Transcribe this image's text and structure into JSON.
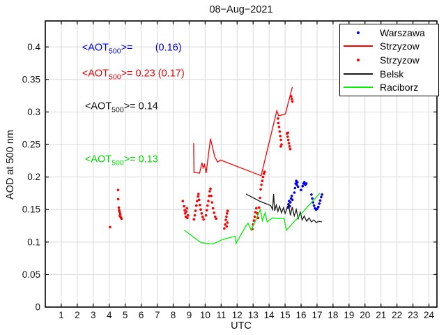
{
  "chart_data": {
    "type": "scatter",
    "title": "08−Aug−2021",
    "xlabel": "UTC",
    "ylabel": "AOD at 500 nm",
    "xlim": [
      0,
      24.5
    ],
    "ylim": [
      0,
      0.44
    ],
    "xticks": [
      1,
      2,
      3,
      4,
      5,
      6,
      7,
      8,
      9,
      10,
      11,
      12,
      13,
      14,
      15,
      16,
      17,
      18,
      19,
      20,
      21,
      22,
      23,
      24
    ],
    "ytick_values": [
      0,
      0.05,
      0.1,
      0.15,
      0.2,
      0.25,
      0.3,
      0.35,
      0.4
    ],
    "ytick_labels": [
      "0",
      "0.05",
      "0.1",
      "0.15",
      "0.2",
      "0.25",
      "0.3",
      "0.35",
      "0.4"
    ],
    "grid": true,
    "grid_color": "#d8d8d8",
    "axis_color": "#000000",
    "aot500_means": {
      "warszawa_bracket": 0.16,
      "strzyzow": 0.23,
      "strzyzow_bracket": 0.17,
      "belsk": 0.14,
      "raciborz": 0.13
    },
    "annotations": [
      {
        "prefix": "<AOT",
        "sub": "500",
        "rest": ">=        (0.16)",
        "color": "#0000ee",
        "x": 2.3,
        "y": 0.397
      },
      {
        "prefix": "<AOT",
        "sub": "500",
        "rest": ">= 0.23 (0.17)",
        "color": "#ee0000",
        "x": 2.3,
        "y": 0.357
      },
      {
        "prefix": "<AOT",
        "sub": "500",
        "rest": ">= 0.14",
        "color": "#111111",
        "x": 2.48,
        "y": 0.307
      },
      {
        "prefix": "<AOT",
        "sub": "500",
        "rest": ">= 0.13",
        "color": "#00dd00",
        "x": 2.48,
        "y": 0.225
      }
    ],
    "legend": {
      "position": "upper-right",
      "entries": [
        {
          "label": "Warszawa",
          "marker": "dot",
          "color": "#0000ee"
        },
        {
          "label": "Strzyzow",
          "marker": "line",
          "color": "#ff0000"
        },
        {
          "label": "Strzyzow",
          "marker": "dot",
          "color": "#ff0000"
        },
        {
          "label": "Belsk",
          "marker": "line",
          "color": "#1a1a1a"
        },
        {
          "label": "Raciborz",
          "marker": "line",
          "color": "#00ee00"
        }
      ]
    },
    "series": [
      {
        "name": "Warszawa",
        "style": "scatter",
        "color": "#0000ee",
        "points": [
          [
            15.17,
            0.153
          ],
          [
            15.21,
            0.158
          ],
          [
            15.25,
            0.163
          ],
          [
            15.29,
            0.155
          ],
          [
            15.33,
            0.161
          ],
          [
            15.37,
            0.167
          ],
          [
            15.42,
            0.171
          ],
          [
            15.46,
            0.165
          ],
          [
            15.58,
            0.176
          ],
          [
            15.62,
            0.183
          ],
          [
            15.66,
            0.19
          ],
          [
            15.7,
            0.194
          ],
          [
            15.73,
            0.188
          ],
          [
            15.77,
            0.192
          ],
          [
            15.81,
            0.185
          ],
          [
            16.0,
            0.18
          ],
          [
            16.1,
            0.186
          ],
          [
            16.15,
            0.19
          ],
          [
            16.21,
            0.192
          ],
          [
            16.27,
            0.188
          ],
          [
            16.33,
            0.19
          ],
          [
            16.65,
            0.173
          ],
          [
            16.7,
            0.167
          ],
          [
            16.75,
            0.161
          ],
          [
            16.81,
            0.156
          ],
          [
            16.87,
            0.152
          ],
          [
            16.94,
            0.15
          ],
          [
            17.01,
            0.151
          ],
          [
            17.08,
            0.154
          ],
          [
            17.14,
            0.159
          ],
          [
            17.2,
            0.164
          ],
          [
            17.26,
            0.169
          ],
          [
            17.31,
            0.173
          ]
        ]
      },
      {
        "name": "Strzyzow",
        "style": "line",
        "color": "#ff0000",
        "points": [
          [
            9.28,
            0.252
          ],
          [
            9.3,
            0.207
          ],
          [
            9.65,
            0.206
          ],
          [
            9.8,
            0.222
          ],
          [
            9.88,
            0.214
          ],
          [
            9.96,
            0.219
          ],
          [
            10.06,
            0.206
          ],
          [
            10.33,
            0.259
          ],
          [
            10.6,
            0.231
          ],
          [
            10.78,
            0.223
          ],
          [
            10.97,
            0.226
          ],
          [
            13.5,
            0.202
          ],
          [
            14.48,
            0.302
          ],
          [
            14.6,
            0.294
          ],
          [
            15.02,
            0.297
          ],
          [
            15.45,
            0.338
          ]
        ]
      },
      {
        "name": "Strzyzow",
        "style": "scatter",
        "color": "#ff0000",
        "points": [
          [
            4.05,
            0.123
          ],
          [
            4.55,
            0.18
          ],
          [
            4.56,
            0.166
          ],
          [
            4.6,
            0.153
          ],
          [
            4.62,
            0.149
          ],
          [
            4.65,
            0.146
          ],
          [
            4.68,
            0.143
          ],
          [
            4.66,
            0.14
          ],
          [
            4.71,
            0.139
          ],
          [
            4.74,
            0.137
          ],
          [
            4.77,
            0.136
          ],
          [
            8.6,
            0.163
          ],
          [
            8.68,
            0.155
          ],
          [
            8.72,
            0.149
          ],
          [
            8.75,
            0.144
          ],
          [
            8.79,
            0.139
          ],
          [
            8.83,
            0.147
          ],
          [
            8.86,
            0.152
          ],
          [
            8.89,
            0.137
          ],
          [
            8.93,
            0.141
          ],
          [
            9.3,
            0.135
          ],
          [
            9.35,
            0.141
          ],
          [
            9.4,
            0.148
          ],
          [
            9.45,
            0.156
          ],
          [
            9.5,
            0.163
          ],
          [
            9.55,
            0.17
          ],
          [
            9.58,
            0.174
          ],
          [
            9.62,
            0.165
          ],
          [
            9.67,
            0.157
          ],
          [
            9.72,
            0.15
          ],
          [
            9.78,
            0.144
          ],
          [
            9.84,
            0.139
          ],
          [
            9.9,
            0.135
          ],
          [
            10.05,
            0.141
          ],
          [
            10.1,
            0.149
          ],
          [
            10.15,
            0.156
          ],
          [
            10.2,
            0.163
          ],
          [
            10.25,
            0.171
          ],
          [
            10.29,
            0.178
          ],
          [
            10.33,
            0.182
          ],
          [
            10.38,
            0.171
          ],
          [
            10.43,
            0.161
          ],
          [
            10.49,
            0.152
          ],
          [
            10.56,
            0.145
          ],
          [
            10.63,
            0.139
          ],
          [
            10.69,
            0.136
          ],
          [
            11.2,
            0.121
          ],
          [
            11.25,
            0.127
          ],
          [
            11.29,
            0.134
          ],
          [
            11.33,
            0.139
          ],
          [
            11.37,
            0.144
          ],
          [
            11.41,
            0.148
          ],
          [
            11.35,
            0.124
          ],
          [
            11.39,
            0.13
          ],
          [
            12.95,
            0.12
          ],
          [
            13.0,
            0.127
          ],
          [
            13.05,
            0.133
          ],
          [
            13.1,
            0.139
          ],
          [
            13.15,
            0.146
          ],
          [
            13.2,
            0.152
          ],
          [
            13.26,
            0.144
          ],
          [
            13.31,
            0.137
          ],
          [
            13.37,
            0.153
          ],
          [
            13.43,
            0.168
          ],
          [
            13.47,
            0.181
          ],
          [
            13.52,
            0.188
          ],
          [
            13.57,
            0.194
          ],
          [
            13.62,
            0.2
          ],
          [
            13.67,
            0.205
          ],
          [
            13.72,
            0.208
          ],
          [
            14.55,
            0.29
          ],
          [
            14.58,
            0.283
          ],
          [
            14.62,
            0.277
          ],
          [
            14.66,
            0.27
          ],
          [
            14.7,
            0.263
          ],
          [
            14.74,
            0.257
          ],
          [
            14.78,
            0.25
          ],
          [
            14.73,
            0.247
          ],
          [
            15.12,
            0.267
          ],
          [
            15.16,
            0.262
          ],
          [
            15.2,
            0.257
          ],
          [
            15.24,
            0.252
          ],
          [
            15.28,
            0.247
          ],
          [
            15.32,
            0.243
          ],
          [
            15.18,
            0.268
          ],
          [
            15.38,
            0.324
          ],
          [
            15.42,
            0.32
          ],
          [
            15.46,
            0.316
          ]
        ]
      },
      {
        "name": "Belsk",
        "style": "line",
        "color": "#1a1a1a",
        "points": [
          [
            12.55,
            0.174
          ],
          [
            13.4,
            0.163
          ],
          [
            14.1,
            0.156
          ],
          [
            14.22,
            0.15
          ],
          [
            14.28,
            0.174
          ],
          [
            14.35,
            0.148
          ],
          [
            14.45,
            0.157
          ],
          [
            14.55,
            0.147
          ],
          [
            14.65,
            0.155
          ],
          [
            14.78,
            0.145
          ],
          [
            14.9,
            0.153
          ],
          [
            15.0,
            0.144
          ],
          [
            15.12,
            0.152
          ],
          [
            15.22,
            0.158
          ],
          [
            15.33,
            0.141
          ],
          [
            15.45,
            0.154
          ],
          [
            15.57,
            0.14
          ],
          [
            15.7,
            0.15
          ],
          [
            15.82,
            0.136
          ],
          [
            15.95,
            0.146
          ],
          [
            16.07,
            0.134
          ],
          [
            16.2,
            0.14
          ],
          [
            16.35,
            0.132
          ],
          [
            16.5,
            0.137
          ],
          [
            16.65,
            0.131
          ],
          [
            16.8,
            0.134
          ],
          [
            16.95,
            0.13
          ],
          [
            17.1,
            0.132
          ],
          [
            17.3,
            0.131
          ]
        ]
      },
      {
        "name": "Raciborz",
        "style": "line",
        "color": "#00ee00",
        "points": [
          [
            8.7,
            0.118
          ],
          [
            9.75,
            0.099
          ],
          [
            10.5,
            0.097
          ],
          [
            11.1,
            0.104
          ],
          [
            11.88,
            0.109
          ],
          [
            11.93,
            0.098
          ],
          [
            12.55,
            0.125
          ],
          [
            12.68,
            0.129
          ],
          [
            12.88,
            0.118
          ],
          [
            13.45,
            0.15
          ],
          [
            13.58,
            0.133
          ],
          [
            13.75,
            0.145
          ],
          [
            13.88,
            0.131
          ],
          [
            14.2,
            0.137
          ],
          [
            14.95,
            0.136
          ],
          [
            15.08,
            0.118
          ],
          [
            17.17,
            0.175
          ]
        ]
      }
    ]
  }
}
